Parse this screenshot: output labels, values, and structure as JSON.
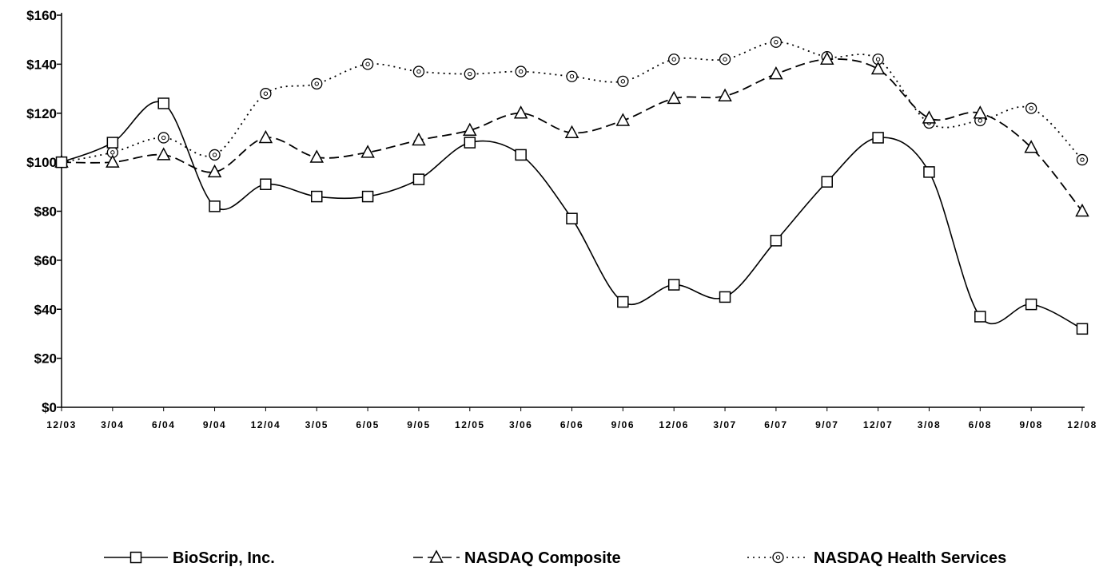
{
  "chart_data": {
    "type": "line",
    "title": "",
    "xlabel": "",
    "ylabel": "",
    "ylim": [
      0,
      160
    ],
    "y_ticks": [
      "$0",
      "$20",
      "$40",
      "$60",
      "$80",
      "$100",
      "$120",
      "$140",
      "$160"
    ],
    "categories": [
      "12/03",
      "3/04",
      "6/04",
      "9/04",
      "12/04",
      "3/05",
      "6/05",
      "9/05",
      "12/05",
      "3/06",
      "6/06",
      "9/06",
      "12/06",
      "3/07",
      "6/07",
      "9/07",
      "12/07",
      "3/08",
      "6/08",
      "9/08",
      "12/08"
    ],
    "grid": false,
    "legend_position": "bottom",
    "series": [
      {
        "name": "BioScrip, Inc.",
        "line_style": "solid",
        "marker": "square",
        "color": "#000000",
        "values": [
          100,
          108,
          124,
          82,
          91,
          86,
          86,
          93,
          108,
          103,
          77,
          43,
          50,
          45,
          68,
          92,
          110,
          96,
          37,
          42,
          32
        ]
      },
      {
        "name": "NASDAQ Composite",
        "line_style": "dashed",
        "marker": "triangle",
        "color": "#000000",
        "values": [
          100,
          100,
          103,
          96,
          110,
          102,
          104,
          109,
          113,
          120,
          112,
          117,
          126,
          127,
          136,
          142,
          138,
          118,
          120,
          106,
          80
        ]
      },
      {
        "name": "NASDAQ Health Services",
        "line_style": "dotted",
        "marker": "circle",
        "color": "#000000",
        "values": [
          100,
          104,
          110,
          103,
          128,
          132,
          140,
          137,
          136,
          137,
          135,
          133,
          142,
          142,
          149,
          143,
          142,
          116,
          117,
          122,
          101
        ]
      }
    ]
  }
}
